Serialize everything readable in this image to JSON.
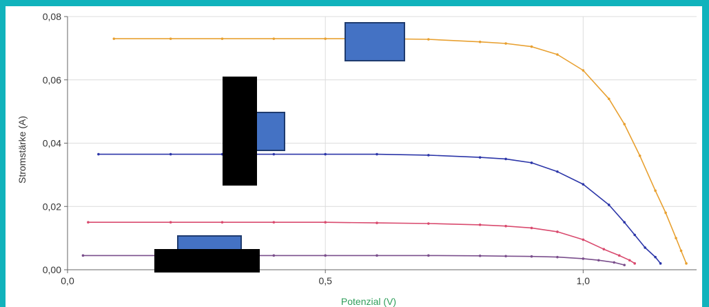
{
  "chart_data": {
    "type": "line",
    "title": "",
    "xlabel": "Potenzial (V)",
    "ylabel": "Stromstärke (A)",
    "xlim": [
      0.0,
      1.22
    ],
    "ylim": [
      0.0,
      0.08
    ],
    "x_ticks": [
      0.0,
      0.5,
      1.0
    ],
    "x_tick_labels": [
      "0,0",
      "0,5",
      "1,0"
    ],
    "y_ticks": [
      0.0,
      0.02,
      0.04,
      0.06,
      0.08
    ],
    "y_tick_labels": [
      "0,00",
      "0,02",
      "0,04",
      "0,06",
      "0,08"
    ],
    "grid": true,
    "legend": "none",
    "colors": {
      "xlabel": "#2e9e5a",
      "ylabel": "#333333",
      "grid": "#dcdcdc",
      "frame_bg": "#11b3bc",
      "redaction_blue": "#4472c4",
      "redaction_black": "#000000"
    },
    "series": [
      {
        "color": "#e8a030",
        "x": [
          0.09,
          0.2,
          0.3,
          0.4,
          0.5,
          0.6,
          0.7,
          0.8,
          0.85,
          0.9,
          0.95,
          1.0,
          1.05,
          1.08,
          1.11,
          1.14,
          1.16,
          1.18,
          1.19,
          1.2
        ],
        "y": [
          0.073,
          0.073,
          0.073,
          0.073,
          0.073,
          0.073,
          0.0728,
          0.072,
          0.0715,
          0.0705,
          0.068,
          0.063,
          0.054,
          0.046,
          0.036,
          0.025,
          0.018,
          0.01,
          0.006,
          0.002
        ]
      },
      {
        "color": "#2b35a8",
        "x": [
          0.06,
          0.2,
          0.3,
          0.4,
          0.5,
          0.6,
          0.7,
          0.8,
          0.85,
          0.9,
          0.95,
          1.0,
          1.05,
          1.08,
          1.1,
          1.12,
          1.14,
          1.15
        ],
        "y": [
          0.0365,
          0.0365,
          0.0365,
          0.0365,
          0.0365,
          0.0365,
          0.0362,
          0.0355,
          0.035,
          0.0338,
          0.031,
          0.027,
          0.0205,
          0.015,
          0.011,
          0.007,
          0.004,
          0.002
        ]
      },
      {
        "color": "#d94a6e",
        "x": [
          0.04,
          0.2,
          0.3,
          0.4,
          0.5,
          0.6,
          0.7,
          0.8,
          0.85,
          0.9,
          0.95,
          1.0,
          1.04,
          1.07,
          1.09,
          1.1
        ],
        "y": [
          0.015,
          0.015,
          0.015,
          0.015,
          0.015,
          0.0148,
          0.0146,
          0.0142,
          0.0138,
          0.0132,
          0.012,
          0.0095,
          0.0065,
          0.0045,
          0.003,
          0.002
        ]
      },
      {
        "color": "#7a4e8c",
        "x": [
          0.03,
          0.2,
          0.3,
          0.4,
          0.5,
          0.6,
          0.7,
          0.8,
          0.85,
          0.9,
          0.95,
          1.0,
          1.03,
          1.06,
          1.08
        ],
        "y": [
          0.0045,
          0.0045,
          0.0045,
          0.0045,
          0.0045,
          0.0045,
          0.0045,
          0.0044,
          0.0043,
          0.0042,
          0.004,
          0.0035,
          0.003,
          0.0023,
          0.0015
        ]
      }
    ]
  }
}
